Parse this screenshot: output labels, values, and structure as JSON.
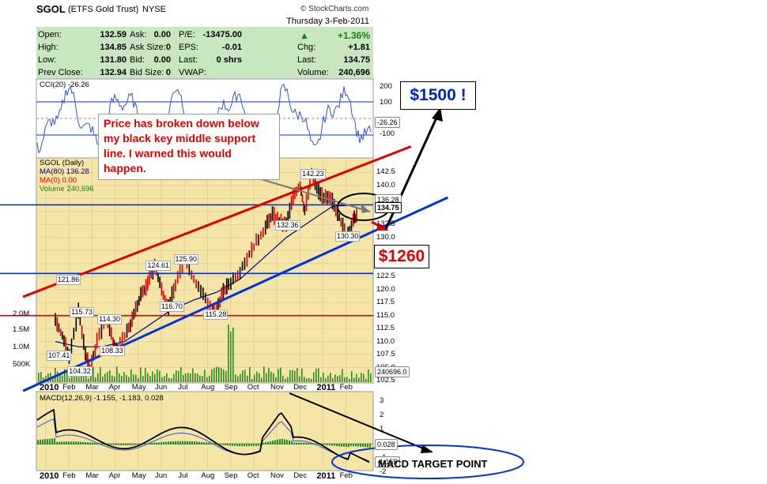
{
  "header": {
    "symbol": "SGOL",
    "name": "(ETFS Gold Trust)",
    "exchange": "NYSE",
    "copyright": "© StockCharts.com",
    "date": "Thursday   3-Feb-2011"
  },
  "quote": {
    "open_label": "Open:",
    "open": "132.59",
    "high_label": "High:",
    "high": "134.85",
    "low_label": "Low:",
    "low": "131.80",
    "prev_label": "Prev Close:",
    "prev": "132.94",
    "ask_label": "Ask:",
    "ask": "0.00",
    "asksize_label": "Ask Size:",
    "asksize": "0",
    "bid_label": "Bid:",
    "bid": "0.00",
    "bidsize_label": "Bid Size:",
    "bidsize": "0",
    "pe_label": "P/E:",
    "pe": "-13475.00",
    "eps_label": "EPS:",
    "eps": "-0.01",
    "last_label": "Last:",
    "last_shrs": "0 shrs",
    "vwap_label": "VWAP:",
    "pct": "+1.36%",
    "chg_label": "Chg:",
    "chg": "+1.81",
    "last2_label": "Last:",
    "last2": "134.75",
    "vol_label": "Volume:",
    "vol": "240,696"
  },
  "colors": {
    "price_bg": "#f5e6a8",
    "quote_bg": "#c8e6c0",
    "red": "#e00000",
    "blue": "#0033dd",
    "ma80": "#000080",
    "annotation": "#e00000"
  },
  "annotations": {
    "note": "Price has broken down below my black key middle support line.  I warned this would happen.",
    "target_high": "$1500 !",
    "target_low": "$1260",
    "macd_target": "MACD TARGET POINT"
  },
  "chart_data": [
    {
      "type": "line",
      "title": "CCI(20) -26.26",
      "series": [
        {
          "name": "CCI(20)",
          "last": -26.26
        }
      ],
      "ticks": [
        "200",
        "100",
        "-100",
        "-200"
      ],
      "last_label": "-26.26",
      "ylim": [
        -250,
        250
      ]
    },
    {
      "type": "line",
      "title": "SGOL (Daily)",
      "legend": [
        "SGOL (Daily)",
        "MA(80) 136.28",
        "MA(0) 0.00",
        "Volume 240,696"
      ],
      "x": [
        "2010",
        "Feb",
        "Mar",
        "Apr",
        "May",
        "Jun",
        "Jul",
        "Aug",
        "Sep",
        "Oct",
        "Nov",
        "Dec",
        "2011",
        "Feb"
      ],
      "ylim": [
        102.5,
        145
      ],
      "yticks": [
        "142.5",
        "140.0",
        "137.5",
        "135.0",
        "132.5",
        "130.0",
        "127.5",
        "125.0",
        "122.5",
        "120.0",
        "117.5",
        "115.0",
        "112.5",
        "110.0",
        "107.5",
        "105.0",
        "102.5"
      ],
      "volume_ticks": [
        "2.0M",
        "1.5M",
        "1.0M",
        "500K"
      ],
      "price_labels": [
        {
          "x": 0.5,
          "y": 121.86,
          "label": "121.86"
        },
        {
          "x": 0.1,
          "y": 107.41,
          "label": "107.41"
        },
        {
          "x": 1.1,
          "y": 115.73,
          "label": "115.73"
        },
        {
          "x": 1.0,
          "y": 104.32,
          "label": "104.32"
        },
        {
          "x": 2.3,
          "y": 114.3,
          "label": "114.30"
        },
        {
          "x": 2.4,
          "y": 108.33,
          "label": "108.33"
        },
        {
          "x": 4.4,
          "y": 124.61,
          "label": "124.61"
        },
        {
          "x": 5.6,
          "y": 125.9,
          "label": "125.90"
        },
        {
          "x": 5.0,
          "y": 116.7,
          "label": "116.70"
        },
        {
          "x": 6.9,
          "y": 115.28,
          "label": "115.28"
        },
        {
          "x": 10.0,
          "y": 132.36,
          "label": "132.36"
        },
        {
          "x": 11.1,
          "y": 142.23,
          "label": "142.23"
        },
        {
          "x": 12.6,
          "y": 130.3,
          "label": "130.30"
        }
      ],
      "right_labels": {
        "ma": "136.28",
        "last": "134.75",
        "volume": "240696.0"
      },
      "price_path": [
        [
          0,
          114
        ],
        [
          0.3,
          111
        ],
        [
          0.6,
          107.4
        ],
        [
          1.0,
          115.7
        ],
        [
          1.3,
          108
        ],
        [
          1.5,
          104.3
        ],
        [
          1.8,
          110
        ],
        [
          2.2,
          114.3
        ],
        [
          2.5,
          110
        ],
        [
          2.7,
          108.3
        ],
        [
          3.1,
          112
        ],
        [
          3.4,
          115
        ],
        [
          3.7,
          119
        ],
        [
          4.0,
          121
        ],
        [
          4.3,
          124.6
        ],
        [
          4.6,
          120
        ],
        [
          4.9,
          116.7
        ],
        [
          5.2,
          121
        ],
        [
          5.6,
          125.9
        ],
        [
          6.0,
          122
        ],
        [
          6.4,
          119
        ],
        [
          6.8,
          116
        ],
        [
          6.9,
          115.3
        ],
        [
          7.2,
          119
        ],
        [
          7.5,
          121
        ],
        [
          7.9,
          123
        ],
        [
          8.3,
          126
        ],
        [
          8.7,
          129
        ],
        [
          9.1,
          132
        ],
        [
          9.4,
          134.5
        ],
        [
          9.7,
          133
        ],
        [
          10.0,
          132.4
        ],
        [
          10.3,
          138
        ],
        [
          10.6,
          140
        ],
        [
          10.8,
          135
        ],
        [
          11.1,
          142.2
        ],
        [
          11.4,
          139
        ],
        [
          11.7,
          137.5
        ],
        [
          12.0,
          137
        ],
        [
          12.3,
          134
        ],
        [
          12.6,
          130.3
        ],
        [
          12.9,
          133
        ],
        [
          13.1,
          134.75
        ]
      ],
      "ma80_path": [
        [
          0,
          110
        ],
        [
          1,
          109
        ],
        [
          2,
          109
        ],
        [
          3,
          110
        ],
        [
          4,
          113
        ],
        [
          5,
          116
        ],
        [
          6,
          118
        ],
        [
          7,
          119.5
        ],
        [
          8,
          122
        ],
        [
          9,
          126
        ],
        [
          10,
          130
        ],
        [
          11,
          133
        ],
        [
          12,
          136
        ],
        [
          13.1,
          136.28
        ]
      ],
      "horizontal_lines": [
        {
          "color": "blue",
          "value": 136.28
        },
        {
          "color": "blue",
          "value": 123.1
        },
        {
          "color": "red",
          "value": 115.0
        }
      ],
      "trend_lines": [
        {
          "color": "red",
          "from": [
            -1.4,
            118.6
          ],
          "to": [
            15.4,
            147.5
          ]
        },
        {
          "color": "black",
          "from": [
            -1.4,
            109.8
          ],
          "to": [
            17.0,
            143.5
          ]
        },
        {
          "color": "blue",
          "from": [
            -1.4,
            100.5
          ],
          "to": [
            17.0,
            137.7
          ]
        }
      ]
    },
    {
      "type": "line",
      "title": "MACD(12,26,9) -1.155, -1.183, 0.028",
      "series": [
        {
          "name": "MACD(12,26,9)",
          "last": -1.155
        },
        {
          "name": "Signal",
          "last": -1.183
        },
        {
          "name": "Histogram",
          "last": 0.028
        }
      ],
      "yticks": [
        "3",
        "2",
        "1",
        "0",
        "-1",
        "-2"
      ],
      "right_labels": {
        "hist": "0.028",
        "macd": "-1.155"
      },
      "x": [
        "2010",
        "Feb",
        "Mar",
        "Apr",
        "May",
        "Jun",
        "Jul",
        "Aug",
        "Sep",
        "Oct",
        "Nov",
        "Dec",
        "2011",
        "Feb"
      ]
    }
  ]
}
